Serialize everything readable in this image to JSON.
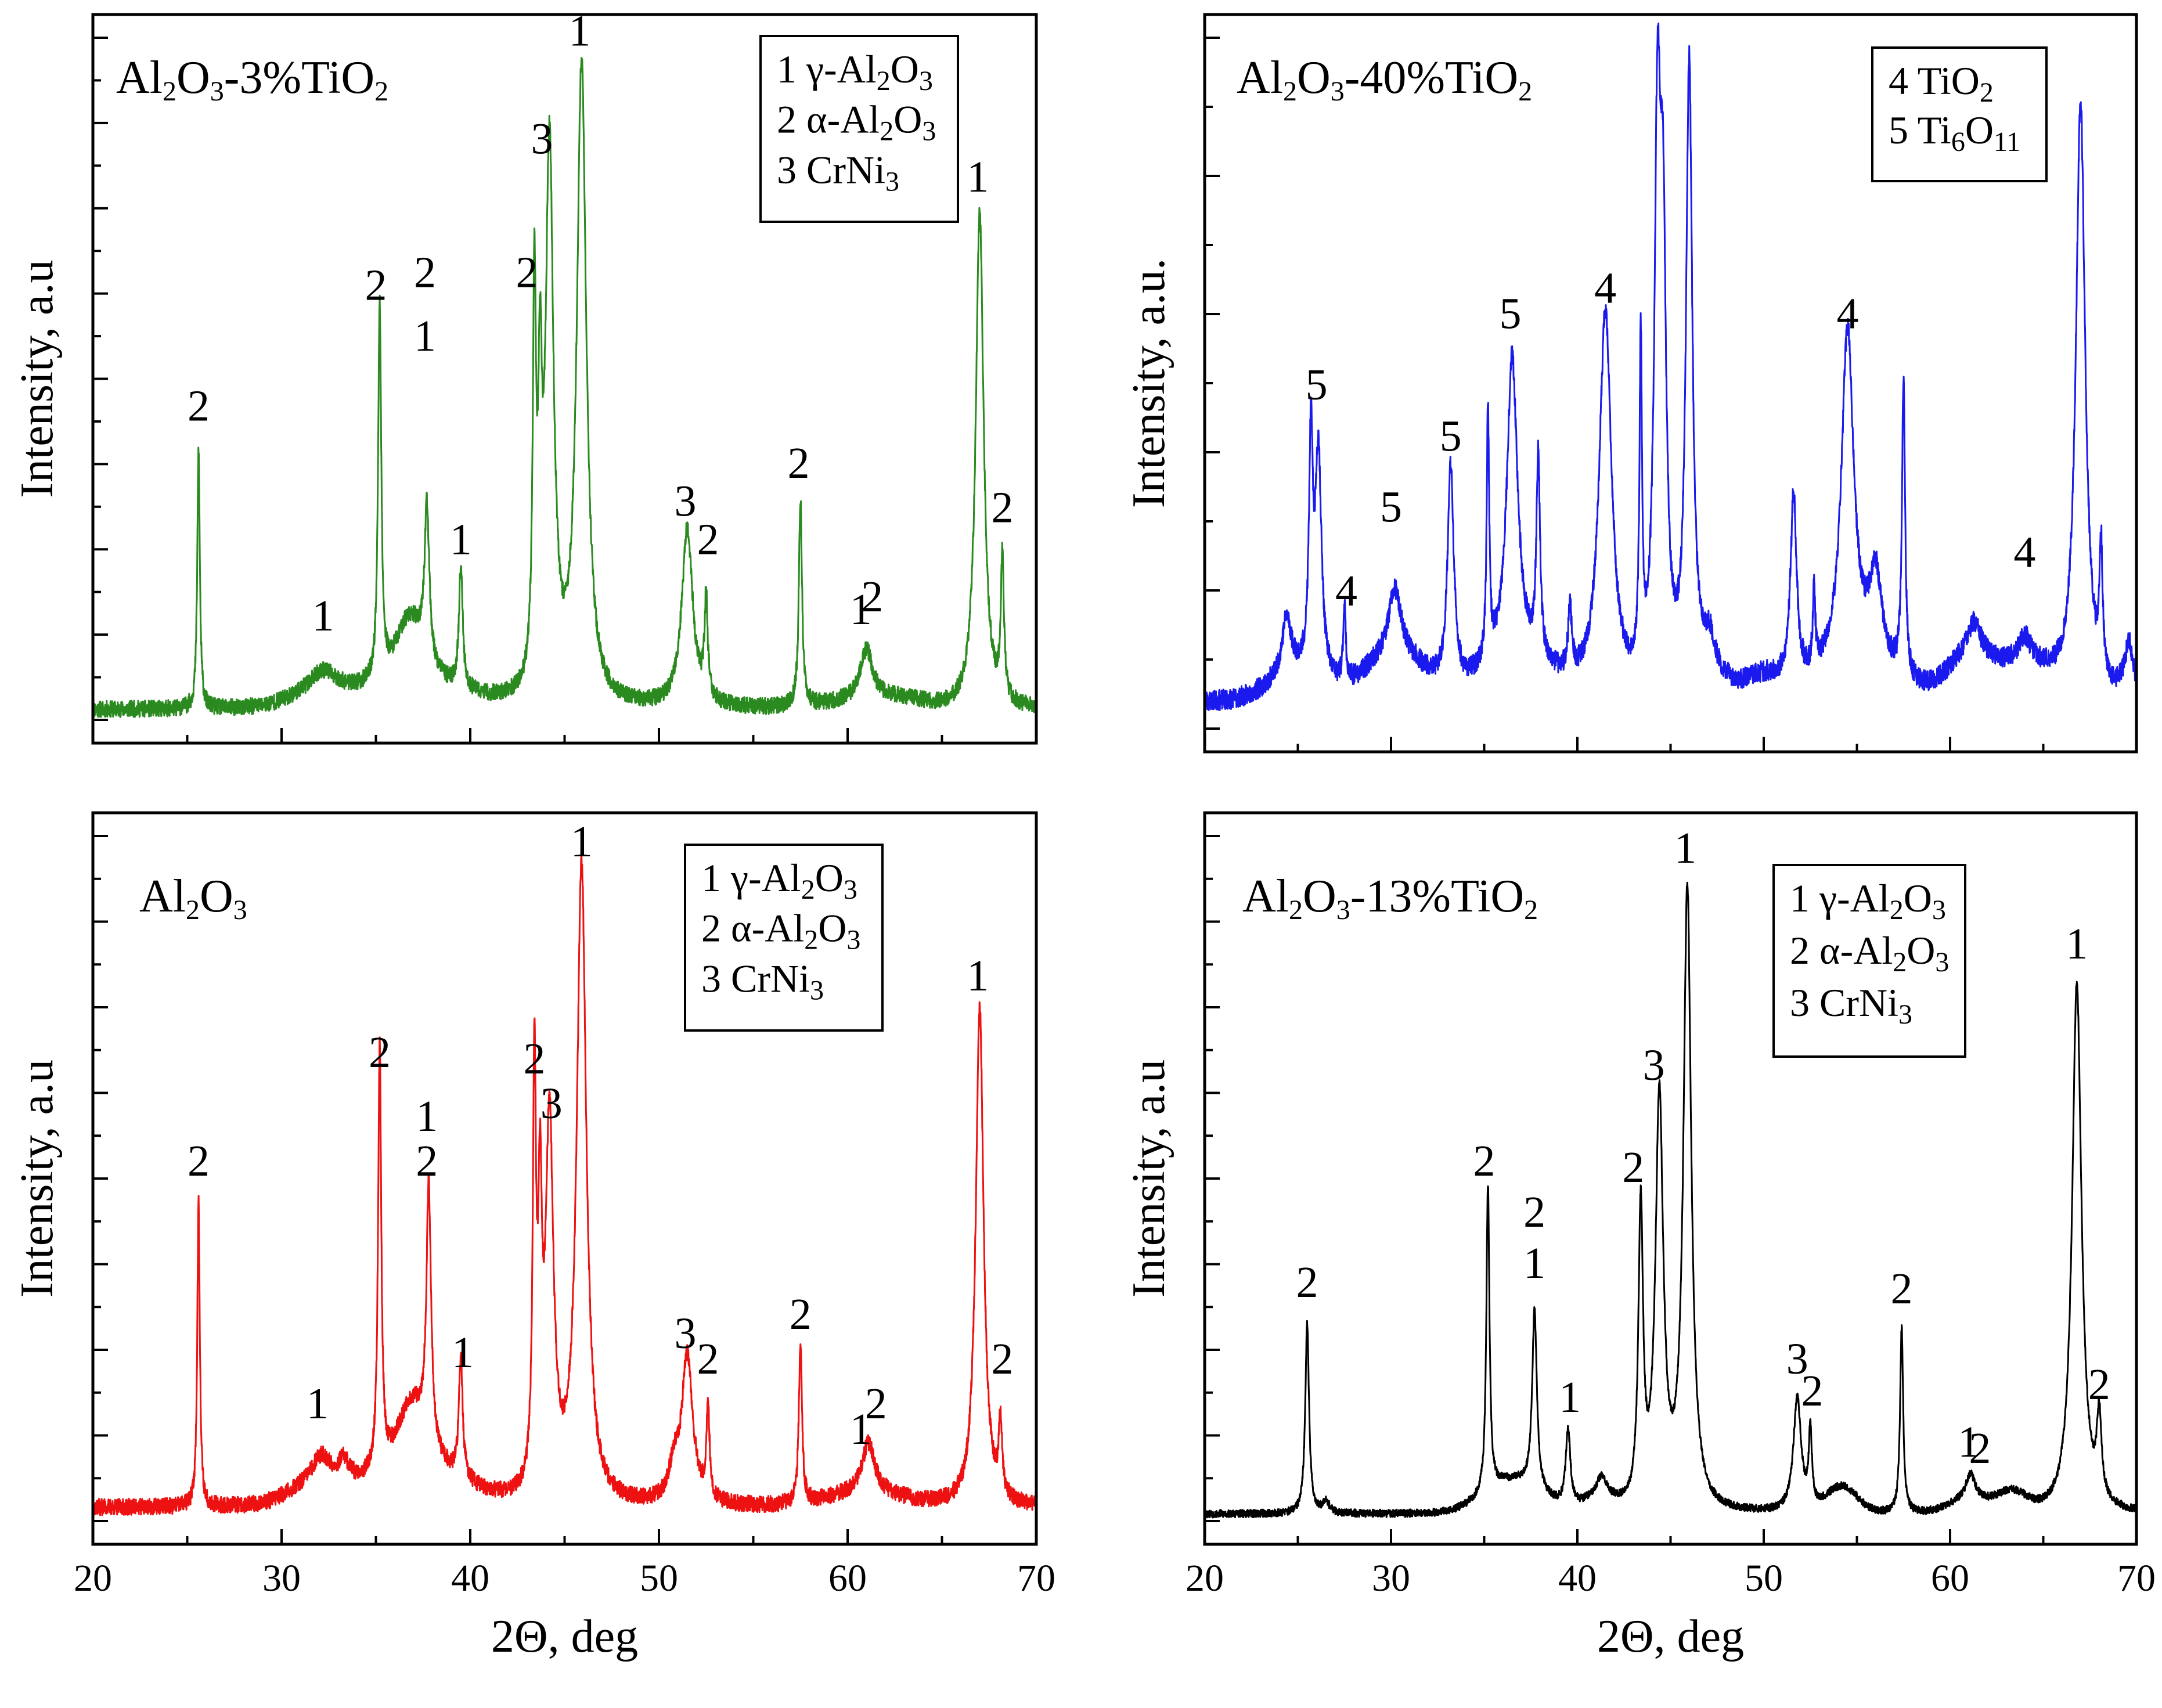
{
  "chart_data": [
    {
      "type": "line",
      "panel": "top-left",
      "title": "Al2O3-3%TiO2",
      "title_runs": [
        [
          "Al",
          ""
        ],
        [
          "2",
          "sub"
        ],
        [
          "O",
          ""
        ],
        [
          "3",
          "sub"
        ],
        [
          "-3%TiO",
          ""
        ],
        [
          "2",
          "sub"
        ]
      ],
      "ylabel": "Intensity, a.u",
      "xlabel": "",
      "xlim": [
        20,
        70
      ],
      "ylim": [
        0,
        100
      ],
      "x_ticks": [
        20,
        30,
        40,
        50,
        60,
        70
      ],
      "show_x_tick_labels": false,
      "y_minor_count": 16,
      "color": "#2a8a1f",
      "legend": [
        {
          "text": "1 γ-Al2O3",
          "runs": [
            [
              "1 γ-Al",
              ""
            ],
            [
              "2",
              "sub"
            ],
            [
              "O",
              ""
            ],
            [
              "3",
              "sub"
            ]
          ]
        },
        {
          "text": "2 α-Al2O3",
          "runs": [
            [
              "2 α-Al",
              ""
            ],
            [
              "2",
              "sub"
            ],
            [
              "O",
              ""
            ],
            [
              "3",
              "sub"
            ]
          ]
        },
        {
          "text": "3 CrNi3",
          "runs": [
            [
              "3 CrNi",
              ""
            ],
            [
              "3",
              "sub"
            ]
          ]
        }
      ],
      "baseline": 2.5,
      "humps": [
        [
          32,
          2,
          1.5
        ],
        [
          37,
          2,
          3
        ],
        [
          63,
          0.8,
          1
        ],
        [
          61,
          1.2,
          2
        ]
      ],
      "peaks": [
        {
          "x": 25.6,
          "h": 41,
          "w": 0.08
        },
        {
          "x": 32.2,
          "h": 3,
          "w": 0.8
        },
        {
          "x": 35.2,
          "h": 59,
          "w": 0.1
        },
        {
          "x": 36.8,
          "h": 12,
          "w": 1
        },
        {
          "x": 37.7,
          "h": 24,
          "w": 0.15
        },
        {
          "x": 39.5,
          "h": 19,
          "w": 0.12
        },
        {
          "x": 43.4,
          "h": 60,
          "w": 0.1
        },
        {
          "x": 43.7,
          "h": 40,
          "w": 0.12
        },
        {
          "x": 44.2,
          "h": 86,
          "w": 0.25
        },
        {
          "x": 45.9,
          "h": 100,
          "w": 0.3
        },
        {
          "x": 51.5,
          "h": 28,
          "w": 0.35
        },
        {
          "x": 52.5,
          "h": 16,
          "w": 0.1
        },
        {
          "x": 57.5,
          "h": 33,
          "w": 0.1
        },
        {
          "x": 61,
          "h": 8,
          "w": 0.4
        },
        {
          "x": 67,
          "h": 78,
          "w": 0.25
        },
        {
          "x": 68.2,
          "h": 22,
          "w": 0.1
        }
      ],
      "noise": 1.3,
      "seed": 11,
      "annotations": [
        {
          "x": 25.6,
          "y": 48,
          "text": "2"
        },
        {
          "x": 32.2,
          "y": 15,
          "text": "1"
        },
        {
          "x": 35.0,
          "y": 67,
          "text": "2"
        },
        {
          "x": 37.6,
          "y": 69,
          "text": "2"
        },
        {
          "x": 37.6,
          "y": 59,
          "text": "1"
        },
        {
          "x": 39.5,
          "y": 27,
          "text": "1"
        },
        {
          "x": 43.0,
          "y": 69,
          "text": "2"
        },
        {
          "x": 43.8,
          "y": 90,
          "text": "3"
        },
        {
          "x": 45.8,
          "y": 107,
          "text": "1"
        },
        {
          "x": 51.4,
          "y": 33,
          "text": "3"
        },
        {
          "x": 52.6,
          "y": 27,
          "text": "2"
        },
        {
          "x": 57.4,
          "y": 39,
          "text": "2"
        },
        {
          "x": 60.7,
          "y": 16,
          "text": "1"
        },
        {
          "x": 61.3,
          "y": 18,
          "text": "2"
        },
        {
          "x": 66.9,
          "y": 84,
          "text": "1"
        },
        {
          "x": 68.2,
          "y": 32,
          "text": "2"
        }
      ]
    },
    {
      "type": "line",
      "panel": "top-right",
      "title": "Al2O3-40%TiO2",
      "title_runs": [
        [
          "Al",
          ""
        ],
        [
          "2",
          "sub"
        ],
        [
          "O",
          ""
        ],
        [
          "3",
          "sub"
        ],
        [
          "-40%TiO",
          ""
        ],
        [
          "2",
          "sub"
        ]
      ],
      "ylabel": "Intensity, a.u.",
      "xlabel": "",
      "xlim": [
        20,
        70
      ],
      "ylim": [
        0,
        100
      ],
      "x_ticks": [
        20,
        30,
        40,
        50,
        60,
        70
      ],
      "show_x_tick_labels": false,
      "y_minor_count": 10,
      "color": "#1a1aee",
      "legend": [
        {
          "text": "4 TiO2",
          "runs": [
            [
              "4 TiO",
              ""
            ],
            [
              "2",
              "sub"
            ]
          ]
        },
        {
          "text": "5 Ti6O11",
          "runs": [
            [
              "5 Ti",
              ""
            ],
            [
              "6",
              "sub"
            ],
            [
              "O",
              ""
            ],
            [
              "11",
              "sub"
            ]
          ]
        }
      ],
      "baseline": 5,
      "humps": [
        [
          25,
          4,
          1.5
        ],
        [
          30.2,
          7,
          1.5
        ],
        [
          36.7,
          5,
          2
        ],
        [
          47,
          3,
          1
        ],
        [
          50,
          3,
          1
        ],
        [
          55,
          5,
          2
        ],
        [
          61,
          6,
          1.2
        ],
        [
          64,
          5,
          1.5
        ]
      ],
      "peaks": [
        {
          "x": 24.4,
          "h": 9,
          "w": 0.3
        },
        {
          "x": 25.7,
          "h": 35,
          "w": 0.12
        },
        {
          "x": 26.1,
          "h": 35,
          "w": 0.2
        },
        {
          "x": 27.5,
          "h": 12,
          "w": 0.08
        },
        {
          "x": 30.2,
          "h": 10,
          "w": 0.4
        },
        {
          "x": 33.2,
          "h": 34,
          "w": 0.2
        },
        {
          "x": 35.2,
          "h": 39,
          "w": 0.08
        },
        {
          "x": 36.5,
          "h": 48,
          "w": 0.35
        },
        {
          "x": 37.9,
          "h": 31,
          "w": 0.12
        },
        {
          "x": 39.6,
          "h": 10,
          "w": 0.12
        },
        {
          "x": 41.5,
          "h": 59,
          "w": 0.4
        },
        {
          "x": 43.4,
          "h": 51,
          "w": 0.08
        },
        {
          "x": 44.3,
          "h": 82,
          "w": 0.2
        },
        {
          "x": 44.6,
          "h": 60,
          "w": 0.2
        },
        {
          "x": 46.0,
          "h": 95,
          "w": 0.2
        },
        {
          "x": 47.1,
          "h": 5,
          "w": 0.3
        },
        {
          "x": 51.6,
          "h": 29,
          "w": 0.2
        },
        {
          "x": 52.7,
          "h": 12,
          "w": 0.08
        },
        {
          "x": 54.5,
          "h": 52,
          "w": 0.4
        },
        {
          "x": 56.0,
          "h": 14,
          "w": 0.4
        },
        {
          "x": 57.5,
          "h": 46,
          "w": 0.1
        },
        {
          "x": 61.3,
          "h": 5,
          "w": 0.4
        },
        {
          "x": 64.0,
          "h": 4,
          "w": 0.4
        },
        {
          "x": 67.0,
          "h": 92,
          "w": 0.3
        },
        {
          "x": 68.1,
          "h": 20,
          "w": 0.1
        },
        {
          "x": 69.6,
          "h": 8,
          "w": 0.3
        }
      ],
      "noise": 1.6,
      "seed": 23,
      "annotations": [
        {
          "x": 26.0,
          "y": 52,
          "text": "5"
        },
        {
          "x": 27.6,
          "y": 20,
          "text": "4"
        },
        {
          "x": 30.0,
          "y": 33,
          "text": "5"
        },
        {
          "x": 33.2,
          "y": 44,
          "text": "5"
        },
        {
          "x": 36.4,
          "y": 63,
          "text": "5"
        },
        {
          "x": 41.5,
          "y": 67,
          "text": "4"
        },
        {
          "x": 54.5,
          "y": 63,
          "text": "4"
        },
        {
          "x": 64.0,
          "y": 26,
          "text": "4"
        }
      ]
    },
    {
      "type": "line",
      "panel": "bottom-left",
      "title": "Al2O3",
      "title_runs": [
        [
          "Al",
          ""
        ],
        [
          "2",
          "sub"
        ],
        [
          "O",
          ""
        ],
        [
          "3",
          "sub"
        ]
      ],
      "ylabel": "Intensity, a.u",
      "xlabel": "2Θ, deg",
      "xlim": [
        20,
        70
      ],
      "ylim": [
        0,
        100
      ],
      "x_ticks": [
        20,
        30,
        40,
        50,
        60,
        70
      ],
      "show_x_tick_labels": true,
      "y_minor_count": 16,
      "color": "#ee1111",
      "legend": [
        {
          "text": "1 γ-Al2O3",
          "runs": [
            [
              "1 γ-Al",
              ""
            ],
            [
              "2",
              "sub"
            ],
            [
              "O",
              ""
            ],
            [
              "3",
              "sub"
            ]
          ]
        },
        {
          "text": "2 α-Al2O3",
          "runs": [
            [
              "2 α-Al",
              ""
            ],
            [
              "2",
              "sub"
            ],
            [
              "O",
              ""
            ],
            [
              "3",
              "sub"
            ]
          ]
        },
        {
          "text": "3 CrNi3",
          "runs": [
            [
              "3 CrNi",
              ""
            ],
            [
              "3",
              "sub"
            ]
          ]
        }
      ],
      "baseline": 3,
      "humps": [
        [
          32,
          3,
          1.5
        ],
        [
          37.2,
          4,
          2.5
        ],
        [
          61,
          2,
          2
        ]
      ],
      "peaks": [
        {
          "x": 25.6,
          "h": 48,
          "w": 0.08
        },
        {
          "x": 32.1,
          "h": 4,
          "w": 0.6
        },
        {
          "x": 33.3,
          "h": 3,
          "w": 0.3
        },
        {
          "x": 35.2,
          "h": 66,
          "w": 0.1
        },
        {
          "x": 36.9,
          "h": 12,
          "w": 1
        },
        {
          "x": 37.8,
          "h": 40,
          "w": 0.15
        },
        {
          "x": 39.5,
          "h": 19,
          "w": 0.12
        },
        {
          "x": 43.4,
          "h": 65,
          "w": 0.1
        },
        {
          "x": 43.7,
          "h": 40,
          "w": 0.12
        },
        {
          "x": 44.2,
          "h": 58,
          "w": 0.25
        },
        {
          "x": 45.9,
          "h": 100,
          "w": 0.3
        },
        {
          "x": 50.8,
          "h": 5,
          "w": 0.3
        },
        {
          "x": 51.5,
          "h": 23,
          "w": 0.35
        },
        {
          "x": 52.6,
          "h": 14,
          "w": 0.1
        },
        {
          "x": 57.5,
          "h": 25,
          "w": 0.1
        },
        {
          "x": 61.1,
          "h": 8,
          "w": 0.4
        },
        {
          "x": 67.0,
          "h": 78,
          "w": 0.25
        },
        {
          "x": 68.1,
          "h": 12,
          "w": 0.1
        }
      ],
      "noise": 1.3,
      "seed": 37,
      "annotations": [
        {
          "x": 25.6,
          "y": 55,
          "text": "2"
        },
        {
          "x": 31.9,
          "y": 17,
          "text": "1"
        },
        {
          "x": 35.2,
          "y": 72,
          "text": "2"
        },
        {
          "x": 37.7,
          "y": 62,
          "text": "1"
        },
        {
          "x": 37.7,
          "y": 55,
          "text": "2"
        },
        {
          "x": 39.6,
          "y": 25,
          "text": "1"
        },
        {
          "x": 43.4,
          "y": 71,
          "text": "2"
        },
        {
          "x": 44.3,
          "y": 64,
          "text": "3"
        },
        {
          "x": 45.9,
          "y": 105,
          "text": "1"
        },
        {
          "x": 51.4,
          "y": 28,
          "text": "3"
        },
        {
          "x": 52.6,
          "y": 24,
          "text": "2"
        },
        {
          "x": 57.5,
          "y": 31,
          "text": "2"
        },
        {
          "x": 60.7,
          "y": 13,
          "text": "1"
        },
        {
          "x": 61.5,
          "y": 17,
          "text": "2"
        },
        {
          "x": 66.9,
          "y": 84,
          "text": "1"
        },
        {
          "x": 68.2,
          "y": 24,
          "text": "2"
        }
      ]
    },
    {
      "type": "line",
      "panel": "bottom-right",
      "title": "Al2O3-13%TiO2",
      "title_runs": [
        [
          "Al",
          ""
        ],
        [
          "2",
          "sub"
        ],
        [
          "O",
          ""
        ],
        [
          "3",
          "sub"
        ],
        [
          "-13%TiO",
          ""
        ],
        [
          "2",
          "sub"
        ]
      ],
      "ylabel": "Intensity, a.u",
      "xlabel": "2Θ, deg",
      "xlim": [
        20,
        70
      ],
      "ylim": [
        0,
        100
      ],
      "x_ticks": [
        20,
        30,
        40,
        50,
        60,
        70
      ],
      "show_x_tick_labels": true,
      "y_minor_count": 16,
      "color": "#000000",
      "legend": [
        {
          "text": "1 γ-Al2O3",
          "runs": [
            [
              "1 γ-Al",
              ""
            ],
            [
              "2",
              "sub"
            ],
            [
              "O",
              ""
            ],
            [
              "3",
              "sub"
            ]
          ]
        },
        {
          "text": "2 α-Al2O3",
          "runs": [
            [
              "2 α-Al",
              ""
            ],
            [
              "2",
              "sub"
            ],
            [
              "O",
              ""
            ],
            [
              "3",
              "sub"
            ]
          ]
        },
        {
          "text": "3 CrNi3",
          "runs": [
            [
              "3 CrNi",
              ""
            ],
            [
              "3",
              "sub"
            ]
          ]
        }
      ],
      "baseline": 2,
      "humps": [
        [
          36.5,
          5,
          1.5
        ],
        [
          41.2,
          2,
          0.8
        ],
        [
          54.2,
          4,
          0.8
        ],
        [
          61,
          2,
          1
        ],
        [
          63.3,
          3,
          0.8
        ]
      ],
      "peaks": [
        {
          "x": 25.5,
          "h": 30,
          "w": 0.12
        },
        {
          "x": 26.5,
          "h": 2,
          "w": 0.2
        },
        {
          "x": 35.2,
          "h": 48,
          "w": 0.1
        },
        {
          "x": 37.7,
          "h": 28,
          "w": 0.15
        },
        {
          "x": 39.5,
          "h": 12,
          "w": 0.15
        },
        {
          "x": 41.3,
          "h": 3,
          "w": 0.3
        },
        {
          "x": 43.4,
          "h": 46,
          "w": 0.15
        },
        {
          "x": 44.4,
          "h": 64,
          "w": 0.25
        },
        {
          "x": 45.9,
          "h": 97,
          "w": 0.25
        },
        {
          "x": 51.8,
          "h": 18,
          "w": 0.25
        },
        {
          "x": 52.5,
          "h": 12,
          "w": 0.1
        },
        {
          "x": 57.4,
          "h": 29,
          "w": 0.1
        },
        {
          "x": 61.1,
          "h": 4,
          "w": 0.3
        },
        {
          "x": 66.8,
          "h": 83,
          "w": 0.3
        },
        {
          "x": 68.0,
          "h": 13,
          "w": 0.15
        }
      ],
      "noise": 0.6,
      "seed": 53,
      "annotations": [
        {
          "x": 25.5,
          "y": 36,
          "text": "2"
        },
        {
          "x": 35.0,
          "y": 55,
          "text": "2"
        },
        {
          "x": 37.7,
          "y": 47,
          "text": "2"
        },
        {
          "x": 37.7,
          "y": 39,
          "text": "1"
        },
        {
          "x": 39.6,
          "y": 18,
          "text": "1"
        },
        {
          "x": 43.0,
          "y": 54,
          "text": "2"
        },
        {
          "x": 44.1,
          "y": 70,
          "text": "3"
        },
        {
          "x": 45.8,
          "y": 104,
          "text": "1"
        },
        {
          "x": 51.8,
          "y": 24,
          "text": "3"
        },
        {
          "x": 52.6,
          "y": 19,
          "text": "2"
        },
        {
          "x": 57.4,
          "y": 35,
          "text": "2"
        },
        {
          "x": 61.0,
          "y": 11,
          "text": "1"
        },
        {
          "x": 61.6,
          "y": 10,
          "text": "2"
        },
        {
          "x": 66.8,
          "y": 89,
          "text": "1"
        },
        {
          "x": 68.0,
          "y": 20,
          "text": "2"
        }
      ]
    }
  ]
}
